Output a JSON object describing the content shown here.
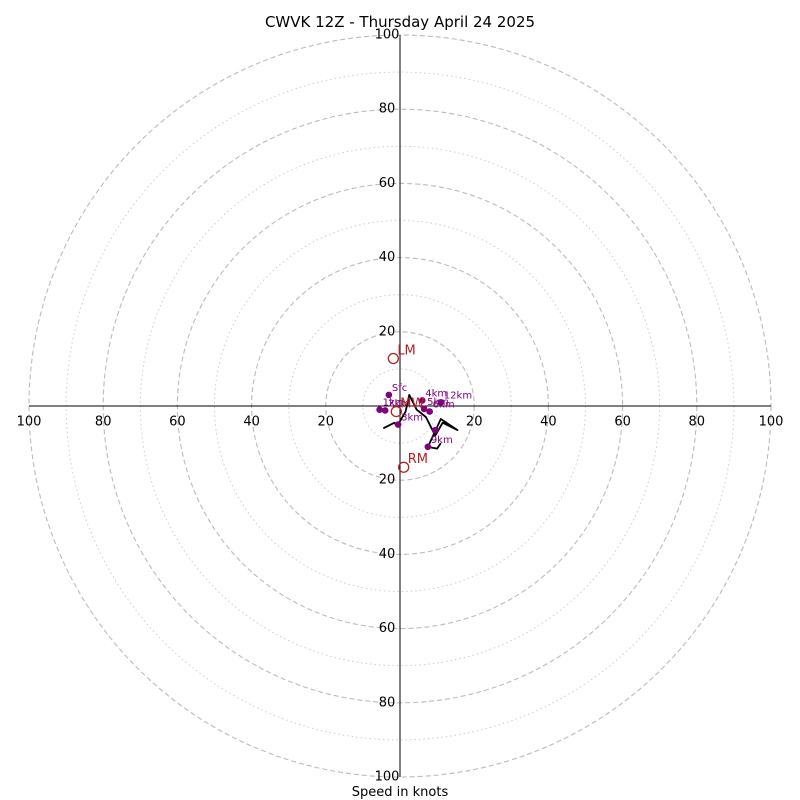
{
  "chart_data": {
    "type": "scatter",
    "title": "CWVK 12Z - Thursday April 24 2025",
    "xlabel": "Speed in knots",
    "ylabel": "",
    "xlim": [
      -100,
      100
    ],
    "ylim": [
      -100,
      100
    ],
    "ring_ticks": [
      100,
      80,
      60,
      40,
      20
    ],
    "major_rings": [
      20,
      40,
      60,
      80,
      100
    ],
    "minor_rings": [
      10,
      30,
      50,
      70,
      90
    ],
    "colors": {
      "hodograph": "#000000",
      "height_points": "#800080",
      "storm_motion": "#b22222",
      "rings": "#bbbbbb",
      "axes": "#000000"
    },
    "hodograph": {
      "u": [
        -4.5,
        -1.5,
        -0.8,
        1.5,
        2.5,
        4.5,
        7.0,
        9.5,
        11.5,
        12.5,
        15.5,
        11.0,
        8.0,
        7.5,
        10.0,
        11.0
      ],
      "v": [
        -6.0,
        -4.5,
        -5.5,
        -1.5,
        3.0,
        -1.0,
        -3.0,
        -8.0,
        -4.5,
        -5.0,
        -6.5,
        -3.5,
        -10.0,
        -11.0,
        -11.5,
        -10.0
      ]
    },
    "height_points": [
      {
        "label": "Sfc",
        "u": -3.0,
        "v": 3.0
      },
      {
        "label": "1km",
        "u": -5.5,
        "v": -1.0
      },
      {
        "label": "2km",
        "u": -4.0,
        "v": -1.2
      },
      {
        "label": "3km",
        "u": -0.5,
        "v": -5.0
      },
      {
        "label": "4km",
        "u": 6.0,
        "v": 1.5
      },
      {
        "label": "5km",
        "u": 6.5,
        "v": -0.8
      },
      {
        "label": "6km",
        "u": 8.0,
        "v": -1.5
      },
      {
        "label": "12km",
        "u": 11.0,
        "v": 1.0
      },
      {
        "label": "",
        "u": 9.5,
        "v": -6.5
      },
      {
        "label": "9km",
        "u": 7.5,
        "v": -11.0
      }
    ],
    "storm_motion": [
      {
        "label": "LM",
        "u": -1.8,
        "v": 12.8
      },
      {
        "label": "RM",
        "u": 1.0,
        "v": -16.5
      },
      {
        "label": "MW",
        "u": -1.0,
        "v": -1.5
      }
    ]
  }
}
